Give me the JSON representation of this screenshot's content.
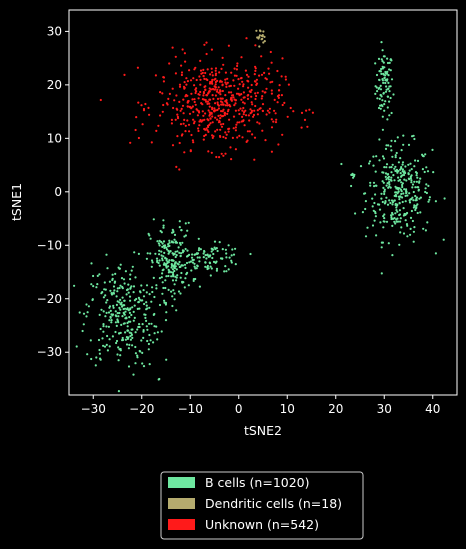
{
  "chart_data": {
    "type": "scatter",
    "title": "",
    "xlabel": "tSNE2",
    "ylabel": "tSNE1",
    "xlim": [
      -35,
      45
    ],
    "ylim": [
      -38,
      34
    ],
    "xticks": [
      -30,
      -20,
      -10,
      0,
      10,
      20,
      30,
      40
    ],
    "yticks": [
      -30,
      -20,
      -10,
      0,
      10,
      20,
      30
    ],
    "xtick_labels": [
      "−30",
      "−20",
      "−10",
      "0",
      "10",
      "20",
      "30",
      "40"
    ],
    "ytick_labels": [
      "−30",
      "−20",
      "−10",
      "0",
      "10",
      "20",
      "30"
    ],
    "grid": false,
    "background": "#000000",
    "legend_position": "below",
    "series": [
      {
        "name": "B cells (n=1020)",
        "color": "#6EE7A0",
        "count": 1020,
        "clusters": [
          {
            "cx": 30,
            "cy": 20,
            "sx": 0.9,
            "sy": 3.2,
            "n": 90
          },
          {
            "cx": 33,
            "cy": 0,
            "sx": 3.4,
            "sy": 4.5,
            "n": 330
          },
          {
            "cx": 23.5,
            "cy": 3.3,
            "sx": 0.3,
            "sy": 0.4,
            "n": 8
          },
          {
            "cx": -6,
            "cy": -12.5,
            "sx": 3.5,
            "sy": 1.3,
            "n": 100
          },
          {
            "cx": -24,
            "cy": -23,
            "sx": 3.8,
            "sy": 5.0,
            "n": 300
          },
          {
            "cx": -14,
            "cy": -13,
            "sx": 2.2,
            "sy": 3.5,
            "n": 190
          },
          {
            "cx": -16.5,
            "cy": -35,
            "sx": 0.1,
            "sy": 0.1,
            "n": 2
          }
        ]
      },
      {
        "name": "Dendritic cells (n=18)",
        "color": "#B5AB6E",
        "count": 18,
        "clusters": [
          {
            "cx": 4.5,
            "cy": 29,
            "sx": 0.5,
            "sy": 0.7,
            "n": 18
          }
        ]
      },
      {
        "name": "Unknown (n=542)",
        "color": "#FF1A1A",
        "count": 542,
        "clusters": [
          {
            "cx": -4,
            "cy": 16.5,
            "sx": 6.5,
            "sy": 4.2,
            "n": 542
          }
        ]
      }
    ]
  }
}
